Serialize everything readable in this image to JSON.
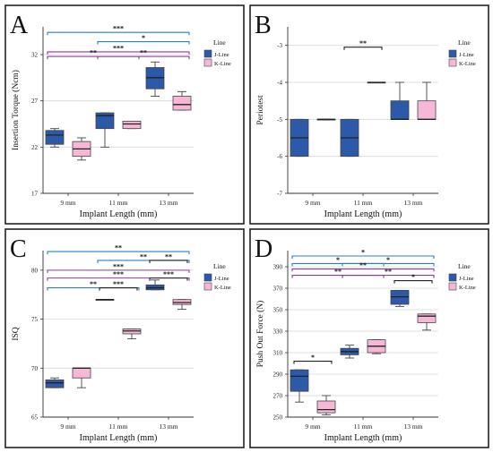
{
  "figure": {
    "colors": {
      "J-Line": "#2d5aa8",
      "K-Line": "#f7b8d8"
    },
    "panels": [
      {
        "letter": "A",
        "legend_title": "Line",
        "legend": [
          "J-Line",
          "K-Line"
        ],
        "chart_data": {
          "type": "box",
          "title": "",
          "xlabel": "Implant Length (mm)",
          "ylabel": "Insertion Torque (Ncm)",
          "categories": [
            "9 mm",
            "11 mm",
            "13 mm"
          ],
          "ylim": [
            17,
            35
          ],
          "yticks": [
            17,
            22,
            27,
            32
          ],
          "series": [
            {
              "name": "J-Line",
              "boxes": [
                {
                  "min": 22.0,
                  "q1": 22.3,
                  "median": 23.3,
                  "q3": 23.8,
                  "max": 24.0
                },
                {
                  "min": 22.0,
                  "q1": 24.0,
                  "median": 25.4,
                  "q3": 25.7,
                  "max": 25.7
                },
                {
                  "min": 27.5,
                  "q1": 28.3,
                  "median": 29.5,
                  "q3": 30.6,
                  "max": 31.2
                }
              ]
            },
            {
              "name": "K-Line",
              "boxes": [
                {
                  "min": 20.6,
                  "q1": 21.0,
                  "median": 21.8,
                  "q3": 22.6,
                  "max": 23.0
                },
                {
                  "min": 24.0,
                  "q1": 24.0,
                  "median": 24.5,
                  "q3": 24.8,
                  "max": 24.8
                },
                {
                  "min": 26.0,
                  "q1": 26.0,
                  "median": 26.6,
                  "q3": 27.5,
                  "max": 28.0
                }
              ]
            }
          ],
          "annotations": [
            {
              "label": "***",
              "from": 0,
              "to": 2,
              "y": 34.4,
              "color": "#2a7fbf"
            },
            {
              "label": "*",
              "from": 1,
              "to": 2,
              "y": 33.4,
              "color": "#2a7fbf"
            },
            {
              "label": "***",
              "from": 0,
              "to": 2,
              "y": 32.3,
              "color": "#8e3a9d"
            },
            {
              "label": "**",
              "from": 0,
              "to": 1,
              "y": 31.8,
              "color": "#8e3a9d"
            },
            {
              "label": "**",
              "from": 1,
              "to": 2,
              "y": 31.8,
              "color": "#8e3a9d"
            }
          ]
        }
      },
      {
        "letter": "B",
        "legend_title": "Line",
        "legend": [
          "J-Line",
          "K-Line"
        ],
        "chart_data": {
          "type": "box",
          "title": "",
          "xlabel": "Implant Length (mm)",
          "ylabel": "Periotest",
          "categories": [
            "9 mm",
            "11 mm",
            "13 mm"
          ],
          "ylim": [
            -7,
            -2.5
          ],
          "yticks": [
            -7,
            -6,
            -5,
            -4,
            -3
          ],
          "series": [
            {
              "name": "J-Line",
              "boxes": [
                {
                  "min": -6.0,
                  "q1": -6.0,
                  "median": -5.5,
                  "q3": -5.0,
                  "max": -5.0
                },
                {
                  "min": -6.0,
                  "q1": -6.0,
                  "median": -5.5,
                  "q3": -5.0,
                  "max": -5.0
                },
                {
                  "min": -5.0,
                  "q1": -5.0,
                  "median": -5.0,
                  "q3": -4.5,
                  "max": -4.0
                }
              ]
            },
            {
              "name": "K-Line",
              "boxes": [
                {
                  "min": -5.0,
                  "q1": -5.0,
                  "median": -5.0,
                  "q3": -5.0,
                  "max": -5.0
                },
                {
                  "min": -4.0,
                  "q1": -4.0,
                  "median": -4.0,
                  "q3": -4.0,
                  "max": -4.0
                },
                {
                  "min": -5.0,
                  "q1": -5.0,
                  "median": -5.0,
                  "q3": -4.5,
                  "max": -4.0
                }
              ]
            }
          ],
          "annotations": [
            {
              "label": "**",
              "from": 1,
              "to": 1,
              "y": -3.05,
              "color": "#222222",
              "short": true
            }
          ]
        }
      },
      {
        "letter": "C",
        "legend_title": "Line",
        "legend": [
          "J-Line",
          "K-Line"
        ],
        "chart_data": {
          "type": "box",
          "title": "",
          "xlabel": "Implant Length (mm)",
          "ylabel": "ISQ",
          "categories": [
            "9 mm",
            "11 mm",
            "13 mm"
          ],
          "ylim": [
            65,
            82
          ],
          "yticks": [
            65,
            70,
            75,
            80
          ],
          "series": [
            {
              "name": "J-Line",
              "boxes": [
                {
                  "min": 68.0,
                  "q1": 68.0,
                  "median": 68.5,
                  "q3": 68.8,
                  "max": 69.0
                },
                {
                  "min": 77.0,
                  "q1": 77.0,
                  "median": 77.0,
                  "q3": 77.0,
                  "max": 77.0
                },
                {
                  "min": 78.0,
                  "q1": 78.0,
                  "median": 78.2,
                  "q3": 78.5,
                  "max": 79.0
                }
              ]
            },
            {
              "name": "K-Line",
              "boxes": [
                {
                  "min": 68.0,
                  "q1": 69.0,
                  "median": 70.0,
                  "q3": 70.0,
                  "max": 70.0
                },
                {
                  "min": 73.0,
                  "q1": 73.5,
                  "median": 73.8,
                  "q3": 74.0,
                  "max": 74.0
                },
                {
                  "min": 76.0,
                  "q1": 76.5,
                  "median": 76.7,
                  "q3": 77.0,
                  "max": 77.0
                }
              ]
            }
          ],
          "annotations": [
            {
              "label": "**",
              "from": 0,
              "to": 2,
              "y": 81.9,
              "color": "#2a7fbf"
            },
            {
              "label": "**",
              "from": 1,
              "to": 2,
              "y": 81.0,
              "color": "#2a7fbf"
            },
            {
              "label": "**",
              "from": 2,
              "to": 2,
              "y": 81.0,
              "color": "#222222",
              "short": true
            },
            {
              "label": "***",
              "from": 0,
              "to": 2,
              "y": 80.0,
              "color": "#8e3a9d"
            },
            {
              "label": "***",
              "from": 0,
              "to": 2,
              "y": 79.2,
              "color": "#8e3a9d"
            },
            {
              "label": "***",
              "from": 2,
              "to": 2,
              "y": 79.2,
              "color": "#222222",
              "short": true
            },
            {
              "label": "**",
              "from": 0,
              "to": 1,
              "y": 78.2,
              "color": "#2a7fbf"
            },
            {
              "label": "***",
              "from": 1,
              "to": 1,
              "y": 78.2,
              "color": "#222222",
              "short": true
            }
          ]
        }
      },
      {
        "letter": "D",
        "legend_title": "Line",
        "legend": [
          "J-Line",
          "K-Line"
        ],
        "chart_data": {
          "type": "box",
          "title": "",
          "xlabel": "Implant Length (mm)",
          "ylabel": "Push Out Force (N)",
          "categories": [
            "9 mm",
            "11 mm",
            "13 mm"
          ],
          "ylim": [
            250,
            405
          ],
          "yticks": [
            250,
            270,
            290,
            310,
            330,
            350,
            370,
            390
          ],
          "series": [
            {
              "name": "J-Line",
              "boxes": [
                {
                  "min": 264,
                  "q1": 274,
                  "median": 288,
                  "q3": 294,
                  "max": 294
                },
                {
                  "min": 305,
                  "q1": 308,
                  "median": 311,
                  "q3": 314,
                  "max": 317
                },
                {
                  "min": 353,
                  "q1": 355,
                  "median": 362,
                  "q3": 368,
                  "max": 368
                }
              ]
            },
            {
              "name": "K-Line",
              "boxes": [
                {
                  "min": 252,
                  "q1": 254,
                  "median": 257,
                  "q3": 265,
                  "max": 270
                },
                {
                  "min": 309,
                  "q1": 310,
                  "median": 316,
                  "q3": 322,
                  "max": 322
                },
                {
                  "min": 331,
                  "q1": 338,
                  "median": 344,
                  "q3": 346,
                  "max": 346
                }
              ]
            }
          ],
          "annotations": [
            {
              "label": "*",
              "from": 0,
              "to": 2,
              "y": 400,
              "color": "#2a7fbf"
            },
            {
              "label": "*",
              "from": 0,
              "to": 1,
              "y": 393,
              "color": "#2a7fbf"
            },
            {
              "label": "*",
              "from": 1,
              "to": 2,
              "y": 393,
              "color": "#2a7fbf"
            },
            {
              "label": "**",
              "from": 0,
              "to": 2,
              "y": 388,
              "color": "#8e3a9d"
            },
            {
              "label": "**",
              "from": 0,
              "to": 1,
              "y": 382,
              "color": "#8e3a9d"
            },
            {
              "label": "**",
              "from": 1,
              "to": 2,
              "y": 382,
              "color": "#8e3a9d"
            },
            {
              "label": "*",
              "from": 2,
              "to": 2,
              "y": 377,
              "color": "#222222",
              "short": true
            },
            {
              "label": "*",
              "from": 0,
              "to": 0,
              "y": 302,
              "color": "#222222",
              "short": true
            }
          ]
        }
      }
    ]
  }
}
